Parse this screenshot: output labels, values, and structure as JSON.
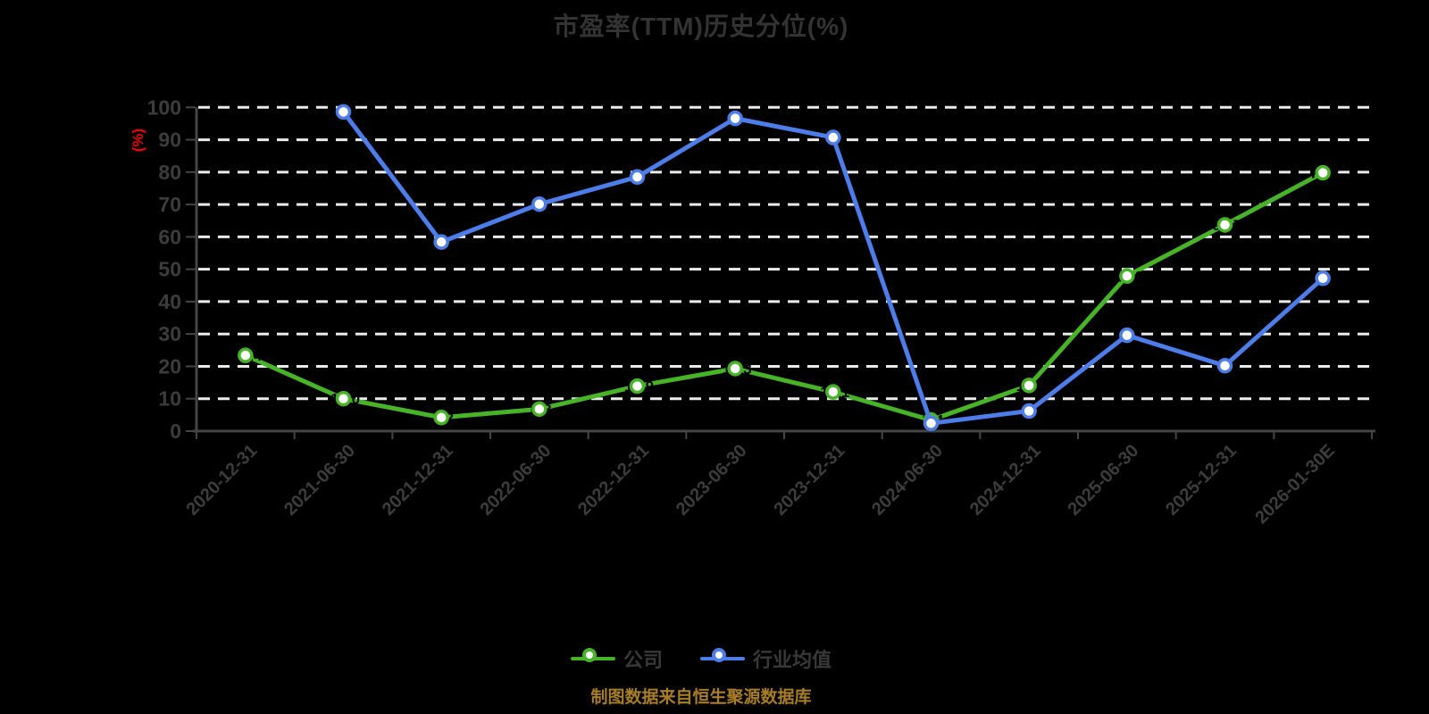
{
  "title": "市盈率(TTM)历史分位(%)",
  "footer": "制图数据来自恒生聚源数据库",
  "colors": {
    "background": "#000000",
    "title": "#333333",
    "axis_label": "#3c3c3c",
    "axis_line": "#454545",
    "gridline": "#ebebeb",
    "y_unit_label": "#f20000",
    "footer": "#a87d26",
    "company": "#47b327",
    "industry": "#4d7de8"
  },
  "y_axis": {
    "unit_label": "(%)",
    "ticks": [
      0,
      10,
      20,
      30,
      40,
      50,
      60,
      70,
      80,
      90,
      100
    ]
  },
  "chart_data": {
    "type": "line",
    "title": "市盈率(TTM)历史分位(%)",
    "ylabel": "(%)",
    "ylim": [
      0,
      100
    ],
    "grid": true,
    "legend_position": "bottom",
    "categories": [
      "2020-12-31",
      "2021-06-30",
      "2021-12-31",
      "2022-06-30",
      "2022-12-31",
      "2023-06-30",
      "2023-12-31",
      "2024-06-30",
      "2024-12-31",
      "2025-06-30",
      "2025-12-31",
      "2026-01-30E"
    ],
    "series": [
      {
        "name": "公司",
        "color": "#47b327",
        "values": [
          23.4,
          10.0,
          4.2,
          6.8,
          13.9,
          19.3,
          12.1,
          3.4,
          14.1,
          47.9,
          63.7,
          79.8
        ]
      },
      {
        "name": "行业均值",
        "color": "#4d7de8",
        "values": [
          null,
          98.6,
          58.4,
          70.1,
          78.5,
          96.6,
          90.7,
          2.4,
          6.2,
          29.6,
          20.2,
          47.2
        ]
      }
    ]
  }
}
